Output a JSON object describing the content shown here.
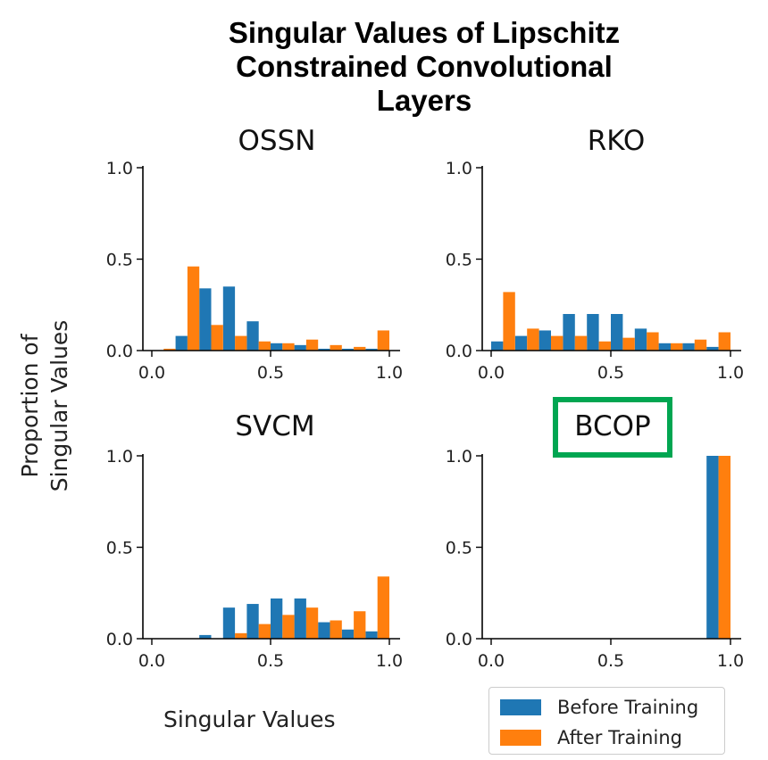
{
  "title_lines": [
    "Singular Values of Lipschitz",
    "Constrained Convolutional",
    "Layers"
  ],
  "ylabel_lines": [
    "Proportion of",
    "Singular Values"
  ],
  "xlabel": "Singular Values",
  "legend": [
    {
      "label": "Before Training",
      "color": "#1f77b4"
    },
    {
      "label": "After Training",
      "color": "#ff7f0e"
    }
  ],
  "highlight_color": "#00a651",
  "chart_data": [
    {
      "type": "bar",
      "title": "OSSN",
      "highlighted": false,
      "xlim": [
        0,
        1
      ],
      "ylim": [
        0,
        1
      ],
      "xticks": [
        "0.0",
        "0.5",
        "1.0"
      ],
      "yticks": [
        "0.0",
        "0.5",
        "1.0"
      ],
      "categories": [
        0.05,
        0.15,
        0.25,
        0.35,
        0.45,
        0.55,
        0.65,
        0.75,
        0.85,
        0.95
      ],
      "series": [
        {
          "name": "Before Training",
          "values": [
            0.0,
            0.08,
            0.34,
            0.35,
            0.16,
            0.04,
            0.03,
            0.01,
            0.01,
            0.01
          ]
        },
        {
          "name": "After Training",
          "values": [
            0.01,
            0.46,
            0.14,
            0.08,
            0.05,
            0.04,
            0.06,
            0.03,
            0.02,
            0.11
          ]
        }
      ]
    },
    {
      "type": "bar",
      "title": "RKO",
      "highlighted": false,
      "xlim": [
        0,
        1
      ],
      "ylim": [
        0,
        1
      ],
      "xticks": [
        "0.0",
        "0.5",
        "1.0"
      ],
      "yticks": [
        "0.0",
        "0.5",
        "1.0"
      ],
      "categories": [
        0.05,
        0.15,
        0.25,
        0.35,
        0.45,
        0.55,
        0.65,
        0.75,
        0.85,
        0.95
      ],
      "series": [
        {
          "name": "Before Training",
          "values": [
            0.05,
            0.08,
            0.11,
            0.2,
            0.2,
            0.2,
            0.12,
            0.04,
            0.04,
            0.02
          ]
        },
        {
          "name": "After Training",
          "values": [
            0.32,
            0.12,
            0.08,
            0.08,
            0.05,
            0.07,
            0.1,
            0.04,
            0.06,
            0.1
          ]
        }
      ]
    },
    {
      "type": "bar",
      "title": "SVCM",
      "highlighted": false,
      "xlim": [
        0,
        1
      ],
      "ylim": [
        0,
        1
      ],
      "xticks": [
        "0.0",
        "0.5",
        "1.0"
      ],
      "yticks": [
        "0.0",
        "0.5",
        "1.0"
      ],
      "categories": [
        0.05,
        0.15,
        0.25,
        0.35,
        0.45,
        0.55,
        0.65,
        0.75,
        0.85,
        0.95
      ],
      "series": [
        {
          "name": "Before Training",
          "values": [
            0.0,
            0.0,
            0.02,
            0.17,
            0.19,
            0.22,
            0.22,
            0.09,
            0.05,
            0.04
          ]
        },
        {
          "name": "After Training",
          "values": [
            0.0,
            0.0,
            0.0,
            0.03,
            0.08,
            0.13,
            0.17,
            0.1,
            0.15,
            0.34
          ]
        }
      ]
    },
    {
      "type": "bar",
      "title": "BCOP",
      "highlighted": true,
      "xlim": [
        0,
        1
      ],
      "ylim": [
        0,
        1
      ],
      "xticks": [
        "0.0",
        "0.5",
        "1.0"
      ],
      "yticks": [
        "0.0",
        "0.5",
        "1.0"
      ],
      "categories": [
        0.05,
        0.15,
        0.25,
        0.35,
        0.45,
        0.55,
        0.65,
        0.75,
        0.85,
        0.95
      ],
      "series": [
        {
          "name": "Before Training",
          "values": [
            0,
            0,
            0,
            0,
            0,
            0,
            0,
            0,
            0,
            1.0
          ]
        },
        {
          "name": "After Training",
          "values": [
            0,
            0,
            0,
            0,
            0,
            0,
            0,
            0,
            0,
            1.0
          ]
        }
      ]
    }
  ]
}
